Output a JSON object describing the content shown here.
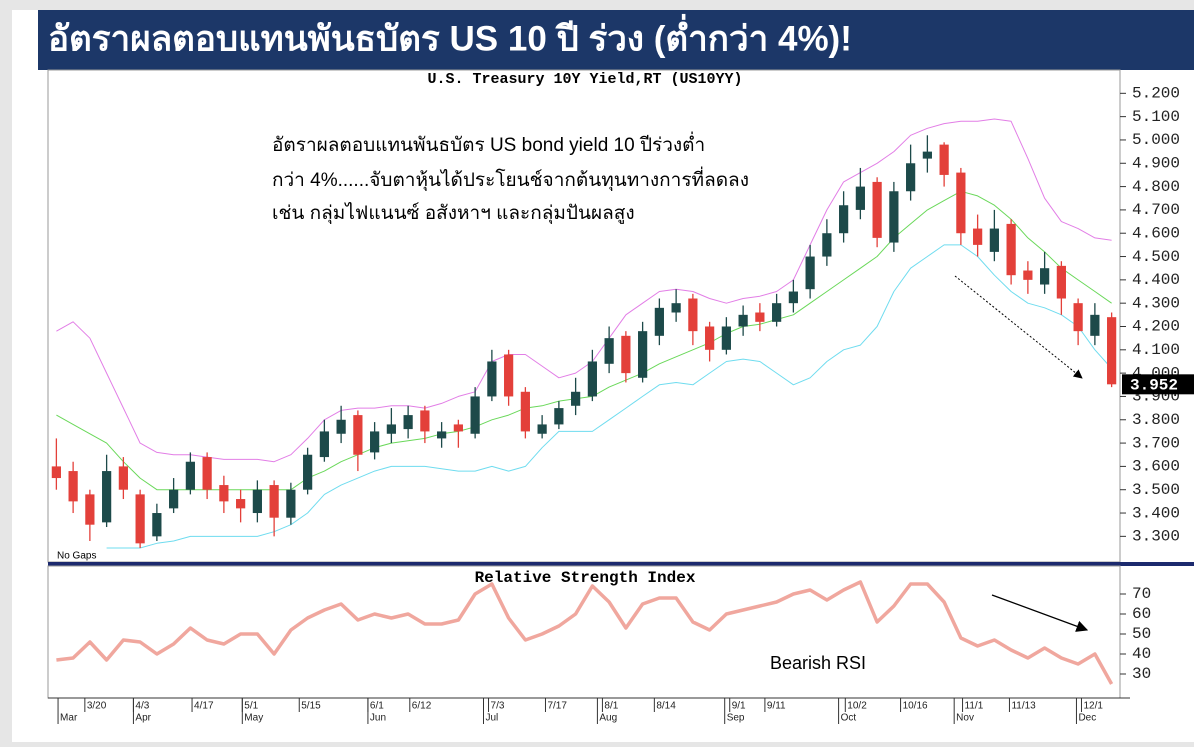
{
  "header": {
    "title": "อัตราผลตอบแทนพันธบัตร US 10 ปี ร่วง (ต่ำกว่า 4%)!"
  },
  "chart_data": [
    {
      "type": "candlestick",
      "title": "U.S. Treasury 10Y Yield,RT (US10YY)",
      "note": "No Gaps",
      "annotation": [
        "อัตราผลตอบแทนพันธบัตร US bond yield 10 ปีร่วงต่ำ",
        "กว่า 4%......จับตาหุ้นได้ประโยนช์จากต้นทุนทางการที่ลดลง",
        "เช่น กลุ่มไฟแนนซ์ อสังหาฯ และกลุ่มปันผลสูง"
      ],
      "up_color": "#1d4a4a",
      "down_color": "#e3403a",
      "open": [
        3.6,
        3.58,
        3.48,
        3.36,
        3.6,
        3.48,
        3.3,
        3.42,
        3.5,
        3.64,
        3.52,
        3.46,
        3.4,
        3.52,
        3.38,
        3.5,
        3.64,
        3.74,
        3.82,
        3.66,
        3.74,
        3.76,
        3.84,
        3.72,
        3.78,
        3.74,
        3.9,
        4.08,
        3.92,
        3.74,
        3.78,
        3.86,
        3.9,
        4.04,
        4.16,
        3.98,
        4.16,
        4.26,
        4.32,
        4.2,
        4.1,
        4.2,
        4.26,
        4.22,
        4.3,
        4.36,
        4.5,
        4.6,
        4.7,
        4.82,
        4.56,
        4.78,
        4.92,
        4.98,
        4.86,
        4.62,
        4.52,
        4.64,
        4.44,
        4.38,
        4.46,
        4.3,
        4.16,
        4.24
      ],
      "high": [
        3.72,
        3.62,
        3.5,
        3.65,
        3.64,
        3.5,
        3.44,
        3.55,
        3.66,
        3.66,
        3.56,
        3.5,
        3.54,
        3.54,
        3.53,
        3.68,
        3.8,
        3.86,
        3.84,
        3.79,
        3.85,
        3.86,
        3.86,
        3.79,
        3.8,
        3.94,
        4.1,
        4.1,
        3.94,
        3.82,
        3.88,
        3.98,
        4.1,
        4.2,
        4.18,
        4.22,
        4.32,
        4.36,
        4.34,
        4.22,
        4.24,
        4.29,
        4.3,
        4.34,
        4.4,
        4.55,
        4.66,
        4.78,
        4.88,
        4.84,
        4.82,
        4.98,
        5.02,
        4.99,
        4.88,
        4.68,
        4.7,
        4.66,
        4.48,
        4.52,
        4.48,
        4.32,
        4.3,
        4.26
      ],
      "low": [
        3.5,
        3.4,
        3.28,
        3.34,
        3.46,
        3.25,
        3.28,
        3.4,
        3.48,
        3.46,
        3.4,
        3.36,
        3.36,
        3.3,
        3.35,
        3.48,
        3.62,
        3.7,
        3.58,
        3.63,
        3.7,
        3.72,
        3.7,
        3.68,
        3.68,
        3.72,
        3.88,
        3.86,
        3.72,
        3.72,
        3.76,
        3.82,
        3.88,
        4.0,
        3.96,
        3.96,
        4.12,
        4.22,
        4.12,
        4.05,
        4.08,
        4.16,
        4.18,
        4.2,
        4.26,
        4.32,
        4.46,
        4.56,
        4.66,
        4.54,
        4.52,
        4.74,
        4.86,
        4.8,
        4.55,
        4.5,
        4.48,
        4.38,
        4.34,
        4.34,
        4.25,
        4.12,
        4.12,
        3.94
      ],
      "close": [
        3.55,
        3.45,
        3.35,
        3.58,
        3.5,
        3.27,
        3.4,
        3.5,
        3.62,
        3.5,
        3.45,
        3.42,
        3.5,
        3.38,
        3.5,
        3.65,
        3.75,
        3.8,
        3.65,
        3.75,
        3.78,
        3.82,
        3.75,
        3.75,
        3.75,
        3.9,
        4.05,
        3.9,
        3.75,
        3.78,
        3.85,
        3.92,
        4.05,
        4.15,
        4.0,
        4.18,
        4.28,
        4.3,
        4.18,
        4.1,
        4.2,
        4.25,
        4.22,
        4.3,
        4.35,
        4.5,
        4.6,
        4.72,
        4.8,
        4.58,
        4.78,
        4.9,
        4.95,
        4.85,
        4.6,
        4.55,
        4.62,
        4.42,
        4.4,
        4.45,
        4.32,
        4.18,
        4.25,
        3.952
      ],
      "last_label": "3.952",
      "series": [
        {
          "color": "#e27ee6",
          "values": [
            4.18,
            4.22,
            4.15,
            4.0,
            3.85,
            3.7,
            3.66,
            3.65,
            3.65,
            3.64,
            3.63,
            3.63,
            3.63,
            3.62,
            3.65,
            3.72,
            3.8,
            3.84,
            3.85,
            3.85,
            3.86,
            3.86,
            3.85,
            3.87,
            3.9,
            3.92,
            4.05,
            4.08,
            4.08,
            4.03,
            3.98,
            4.0,
            4.05,
            4.15,
            4.25,
            4.3,
            4.35,
            4.36,
            4.35,
            4.32,
            4.3,
            4.32,
            4.33,
            4.35,
            4.4,
            4.55,
            4.7,
            4.82,
            4.86,
            4.9,
            4.95,
            5.02,
            5.05,
            5.07,
            5.08,
            5.08,
            5.09,
            5.08,
            4.92,
            4.75,
            4.65,
            4.62,
            4.58,
            4.57
          ]
        },
        {
          "color": "#6ad85a",
          "values": [
            3.82,
            3.78,
            3.74,
            3.7,
            3.62,
            3.55,
            3.5,
            3.5,
            3.5,
            3.5,
            3.5,
            3.5,
            3.5,
            3.5,
            3.5,
            3.55,
            3.58,
            3.62,
            3.65,
            3.68,
            3.7,
            3.71,
            3.72,
            3.74,
            3.75,
            3.77,
            3.8,
            3.82,
            3.85,
            3.86,
            3.88,
            3.89,
            3.9,
            3.94,
            3.97,
            4.0,
            4.04,
            4.07,
            4.1,
            4.13,
            4.17,
            4.2,
            4.21,
            4.23,
            4.25,
            4.3,
            4.35,
            4.4,
            4.45,
            4.5,
            4.58,
            4.64,
            4.7,
            4.74,
            4.78,
            4.76,
            4.72,
            4.66,
            4.58,
            4.52,
            4.45,
            4.4,
            4.35,
            4.3
          ]
        },
        {
          "color": "#6fdcef",
          "values": [
            null,
            null,
            null,
            3.25,
            3.25,
            3.25,
            3.27,
            3.28,
            3.3,
            3.3,
            3.3,
            3.3,
            3.3,
            3.32,
            3.35,
            3.4,
            3.48,
            3.52,
            3.55,
            3.58,
            3.6,
            3.6,
            3.6,
            3.59,
            3.58,
            3.58,
            3.6,
            3.58,
            3.6,
            3.68,
            3.75,
            3.75,
            3.75,
            3.8,
            3.85,
            3.9,
            3.95,
            3.96,
            3.95,
            4.0,
            4.05,
            4.06,
            4.05,
            4.0,
            3.95,
            3.98,
            4.05,
            4.1,
            4.12,
            4.2,
            4.35,
            4.45,
            4.5,
            4.55,
            4.55,
            4.5,
            4.42,
            4.35,
            4.3,
            4.28,
            4.25,
            4.2,
            4.1,
            4.02
          ]
        }
      ],
      "xlim": [
        -0.5,
        63.5
      ],
      "ylim": [
        3.19,
        5.3
      ],
      "yticks": [
        {
          "value": 3.3,
          "label": "3.300"
        },
        {
          "value": 3.4,
          "label": "3.400"
        },
        {
          "value": 3.5,
          "label": "3.500"
        },
        {
          "value": 3.6,
          "label": "3.600"
        },
        {
          "value": 3.7,
          "label": "3.700"
        },
        {
          "value": 3.8,
          "label": "3.800"
        },
        {
          "value": 3.9,
          "label": "3.900"
        },
        {
          "value": 4.0,
          "label": "4.000"
        },
        {
          "value": 4.1,
          "label": "4.100"
        },
        {
          "value": 4.2,
          "label": "4.200"
        },
        {
          "value": 4.3,
          "label": "4.300"
        },
        {
          "value": 4.4,
          "label": "4.400"
        },
        {
          "value": 4.5,
          "label": "4.500"
        },
        {
          "value": 4.6,
          "label": "4.600"
        },
        {
          "value": 4.7,
          "label": "4.700"
        },
        {
          "value": 4.8,
          "label": "4.800"
        },
        {
          "value": 4.9,
          "label": "4.900"
        },
        {
          "value": 5.0,
          "label": "5.000"
        },
        {
          "value": 5.1,
          "label": "5.100"
        },
        {
          "value": 5.2,
          "label": "5.200"
        }
      ]
    },
    {
      "type": "line",
      "title": "Relative Strength Index",
      "annotation": "Bearish RSI",
      "series": [
        {
          "color": "#f0a79e",
          "values": [
            37,
            38,
            46,
            37,
            47,
            46,
            40,
            45,
            53,
            47,
            45,
            50,
            50,
            40,
            52,
            58,
            62,
            65,
            57,
            60,
            58,
            60,
            55,
            55,
            57,
            70,
            75,
            58,
            47,
            50,
            54,
            60,
            74,
            66,
            53,
            65,
            68,
            68,
            56,
            52,
            60,
            62,
            64,
            66,
            70,
            72,
            67,
            72,
            76,
            56,
            64,
            75,
            75,
            66,
            48,
            44,
            47,
            42,
            38,
            43,
            38,
            35,
            40,
            25
          ]
        }
      ],
      "xlim": [
        -0.5,
        63.5
      ],
      "ylim": [
        18,
        84
      ],
      "yticks": [
        30,
        40,
        50,
        60,
        70
      ],
      "xticks": [
        {
          "value": 1.7,
          "label": "3/20"
        },
        {
          "value": 4.6,
          "label": "4/3"
        },
        {
          "value": 8.1,
          "label": "4/17"
        },
        {
          "value": 11.1,
          "label": "5/1"
        },
        {
          "value": 14.5,
          "label": "5/15"
        },
        {
          "value": 18.6,
          "label": "6/1"
        },
        {
          "value": 21.1,
          "label": "6/12"
        },
        {
          "value": 25.8,
          "label": "7/3"
        },
        {
          "value": 29.2,
          "label": "7/17"
        },
        {
          "value": 32.6,
          "label": "8/1"
        },
        {
          "value": 35.7,
          "label": "8/14"
        },
        {
          "value": 40.2,
          "label": "9/1"
        },
        {
          "value": 42.3,
          "label": "9/11"
        },
        {
          "value": 47.1,
          "label": "10/2"
        },
        {
          "value": 50.4,
          "label": "10/16"
        },
        {
          "value": 54.1,
          "label": "11/1"
        },
        {
          "value": 56.9,
          "label": "11/13"
        },
        {
          "value": 61.2,
          "label": "12/1"
        }
      ],
      "months": [
        {
          "value": 0.1,
          "label": "Mar"
        },
        {
          "value": 4.6,
          "label": "Apr"
        },
        {
          "value": 11.1,
          "label": "May"
        },
        {
          "value": 18.6,
          "label": "Jun"
        },
        {
          "value": 25.5,
          "label": "Jul"
        },
        {
          "value": 32.3,
          "label": "Aug"
        },
        {
          "value": 39.9,
          "label": "Sep"
        },
        {
          "value": 46.7,
          "label": "Oct"
        },
        {
          "value": 53.6,
          "label": "Nov"
        },
        {
          "value": 60.9,
          "label": "Dec"
        }
      ]
    }
  ]
}
